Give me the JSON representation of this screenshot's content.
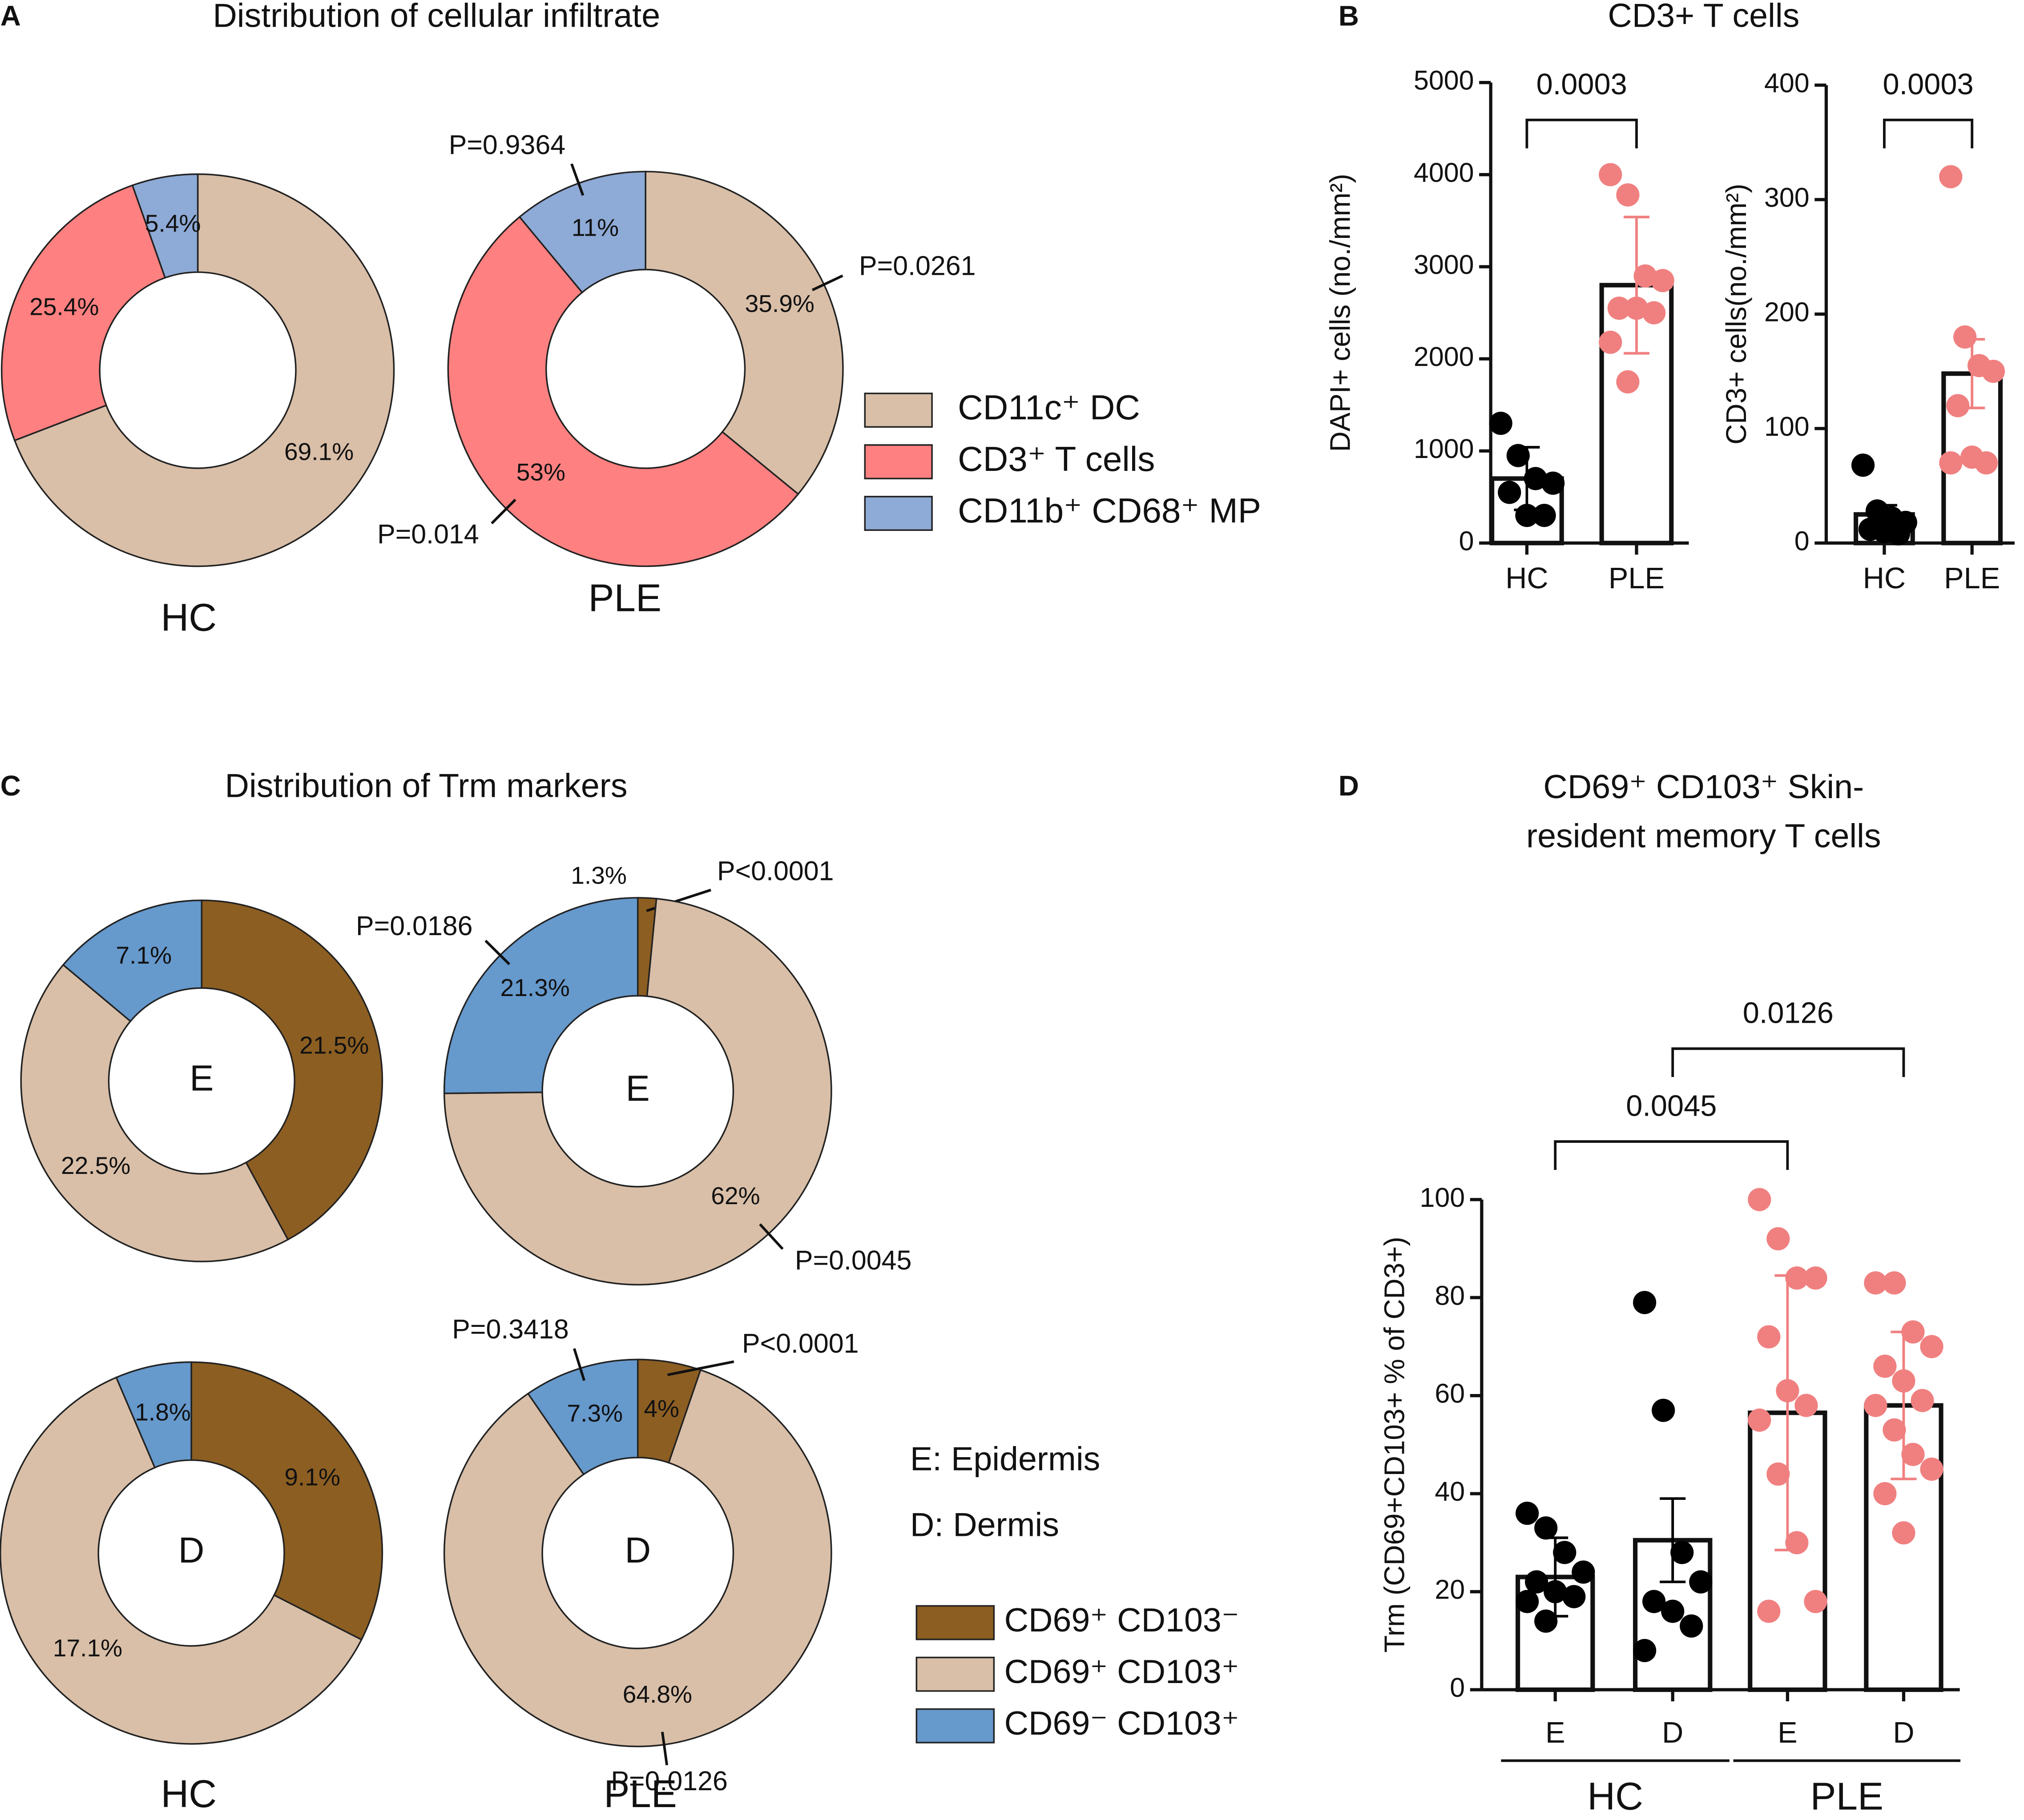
{
  "chart_data": [
    {
      "type": "pie",
      "panel": "A",
      "title": "Distribution of cellular infiltrate",
      "categories": [
        "CD11c⁺ DC",
        "CD3⁺ T cells",
        "CD11b⁺ CD68⁺ MP"
      ],
      "colors": [
        "#d9bfa8",
        "#ff8080",
        "#8eaad6"
      ],
      "pies": [
        {
          "label": "HC",
          "values": [
            69.1,
            25.4,
            5.4
          ],
          "value_labels": [
            "69.1%",
            "25.4%",
            "5.4%"
          ]
        },
        {
          "label": "PLE",
          "values": [
            35.9,
            53,
            11
          ],
          "value_labels": [
            "35.9%",
            "53%",
            "11%"
          ],
          "annotations": [
            "P=0.0261",
            "P=0.014",
            "P=0.9364"
          ]
        }
      ]
    },
    {
      "type": "bar",
      "panel": "B",
      "title": "CD3+ T cells",
      "subcharts": [
        {
          "ylabel": "DAPI+ cells (no./mm²)",
          "categories": [
            "HC",
            "PLE"
          ],
          "ylim": [
            0,
            5000
          ],
          "yticks": [
            0,
            1000,
            2000,
            3000,
            4000,
            5000
          ],
          "values": [
            700,
            2800
          ],
          "errors": [
            340,
            740
          ],
          "points": [
            [
              1300,
              950,
              700,
              650,
              550,
              300,
              300
            ],
            [
              4000,
              3780,
              2900,
              2850,
              2550,
              2550,
              2500,
              2180,
              1750
            ]
          ],
          "point_colors": [
            "#000000",
            "#f08080"
          ],
          "comparisons": [
            {
              "between": [
                0,
                1
              ],
              "label": "0.0003"
            }
          ]
        },
        {
          "ylabel": "CD3+ cells(no./mm²)",
          "categories": [
            "HC",
            "PLE"
          ],
          "ylim": [
            0,
            400
          ],
          "yticks": [
            0,
            100,
            200,
            300,
            400
          ],
          "values": [
            25,
            148
          ],
          "errors": [
            8,
            30
          ],
          "points": [
            [
              68,
              28,
              22,
              18,
              12,
              10,
              8
            ],
            [
              320,
              180,
              155,
              150,
              120,
              75,
              70,
              70
            ]
          ],
          "point_colors": [
            "#000000",
            "#f08080"
          ],
          "comparisons": [
            {
              "between": [
                0,
                1
              ],
              "label": "0.0003"
            }
          ]
        }
      ]
    },
    {
      "type": "pie",
      "panel": "C",
      "title": "Distribution of Trm markers",
      "categories": [
        "CD69⁺ CD103⁻",
        "CD69⁺ CD103⁺",
        "CD69⁻ CD103⁺"
      ],
      "colors": [
        "#8c5e22",
        "#d9bfa8",
        "#6699cc"
      ],
      "columns": [
        "HC",
        "PLE"
      ],
      "notes": [
        "E: Epidermis",
        "D: Dermis"
      ],
      "pies": [
        {
          "center": "E",
          "values": [
            21.5,
            22.5,
            7.1
          ],
          "value_labels": [
            "21.5%",
            "22.5%",
            "7.1%"
          ]
        },
        {
          "center": "E",
          "values": [
            1.3,
            62,
            21.3
          ],
          "value_labels": [
            "1.3%",
            "62%",
            "21.3%"
          ],
          "annotations": [
            "P<0.0001",
            "P=0.0045",
            "P=0.0186"
          ]
        },
        {
          "center": "D",
          "values": [
            9.1,
            17.1,
            1.8
          ],
          "value_labels": [
            "9.1%",
            "17.1%",
            "1.8%"
          ]
        },
        {
          "center": "D",
          "values": [
            4,
            64.8,
            7.3
          ],
          "value_labels": [
            "4%",
            "64.8%",
            "7.3%"
          ],
          "annotations": [
            "P<0.0001",
            "P=0.0126",
            "P=0.3418"
          ]
        }
      ]
    },
    {
      "type": "bar",
      "panel": "D",
      "title": [
        "CD69⁺ CD103⁺ Skin-",
        "resident memory T cells"
      ],
      "subcharts": [
        {
          "ylabel": "Trm (CD69+CD103+ % of CD3+)",
          "categories": [
            "E",
            "D",
            "E",
            "D"
          ],
          "groups": [
            "HC",
            "PLE"
          ],
          "ylim": [
            0,
            100
          ],
          "yticks": [
            0,
            20,
            40,
            60,
            80,
            100
          ],
          "values": [
            23,
            30.5,
            56.5,
            58
          ],
          "errors": [
            8,
            8.5,
            28,
            15
          ],
          "points": [
            [
              36,
              33,
              28,
              24,
              22,
              20,
              19,
              18,
              14
            ],
            [
              79,
              57,
              28,
              22,
              18,
              16,
              13,
              8
            ],
            [
              100,
              92,
              84,
              84,
              72,
              61,
              58,
              55,
              44,
              30,
              18,
              16
            ],
            [
              83,
              83,
              73,
              70,
              66,
              63,
              59,
              58,
              53,
              48,
              45,
              40,
              32
            ]
          ],
          "point_colors": [
            "#000000",
            "#000000",
            "#f08080",
            "#f08080"
          ],
          "comparisons": [
            {
              "between": [
                0,
                2
              ],
              "label": "0.0045"
            },
            {
              "between": [
                1,
                3
              ],
              "label": "0.0126"
            }
          ]
        }
      ]
    }
  ]
}
